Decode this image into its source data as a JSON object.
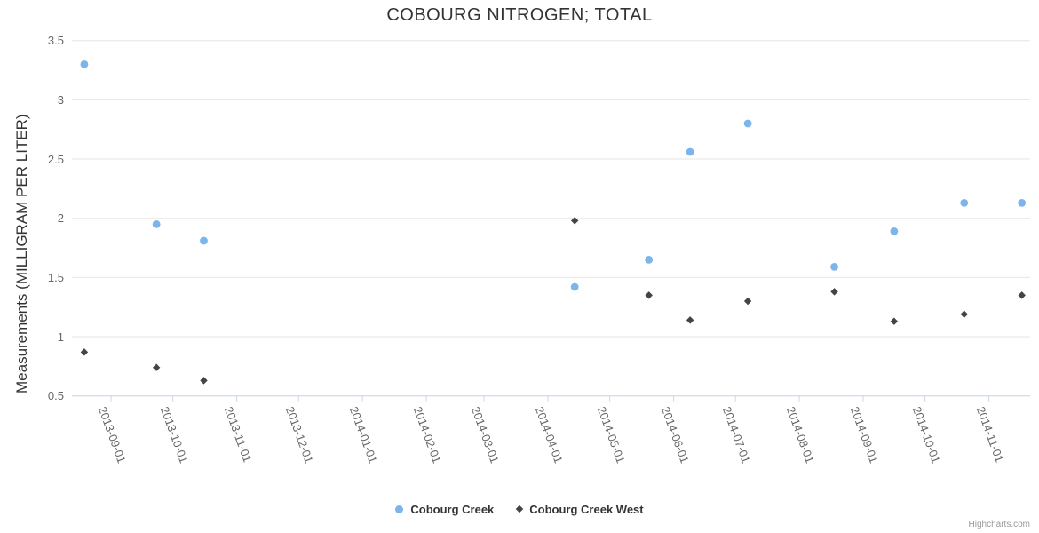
{
  "chart_data": {
    "type": "scatter",
    "title": "COBOURG NITROGEN; TOTAL",
    "xlabel": "",
    "ylabel": "Measurements (MILLIGRAM PER LITER)",
    "x_type": "datetime",
    "x_range": [
      "2013-08-13",
      "2014-11-21"
    ],
    "ylim": [
      0.5,
      3.5
    ],
    "y_ticks": [
      0.5,
      1,
      1.5,
      2,
      2.5,
      3,
      3.5
    ],
    "x_ticks": [
      "2013-09-01",
      "2013-10-01",
      "2013-11-01",
      "2013-12-01",
      "2014-01-01",
      "2014-02-01",
      "2014-03-01",
      "2014-04-01",
      "2014-05-01",
      "2014-06-01",
      "2014-07-01",
      "2014-08-01",
      "2014-09-01",
      "2014-10-01",
      "2014-11-01"
    ],
    "grid": "horizontal",
    "grid_color": "#e6e6e6",
    "axis_line_color": "#ccd6eb",
    "legend_position": "bottom-center",
    "series": [
      {
        "name": "Cobourg Creek",
        "marker": "circle",
        "color": "#7cb5ec",
        "points": [
          [
            "2013-08-19",
            3.3
          ],
          [
            "2013-09-23",
            1.95
          ],
          [
            "2013-10-16",
            1.81
          ],
          [
            "2014-04-14",
            1.42
          ],
          [
            "2014-05-20",
            1.65
          ],
          [
            "2014-06-09",
            2.56
          ],
          [
            "2014-07-07",
            2.8
          ],
          [
            "2014-08-18",
            1.59
          ],
          [
            "2014-09-16",
            1.89
          ],
          [
            "2014-10-20",
            2.13
          ],
          [
            "2014-11-17",
            2.13
          ]
        ]
      },
      {
        "name": "Cobourg Creek West",
        "marker": "diamond",
        "color": "#434348",
        "points": [
          [
            "2013-08-19",
            0.87
          ],
          [
            "2013-09-23",
            0.74
          ],
          [
            "2013-10-16",
            0.63
          ],
          [
            "2014-04-14",
            1.98
          ],
          [
            "2014-05-20",
            1.35
          ],
          [
            "2014-06-09",
            1.14
          ],
          [
            "2014-07-07",
            1.3
          ],
          [
            "2014-08-18",
            1.38
          ],
          [
            "2014-09-16",
            1.13
          ],
          [
            "2014-10-20",
            1.19
          ],
          [
            "2014-11-17",
            1.35
          ]
        ]
      }
    ]
  },
  "credits": {
    "label": "Highcharts.com"
  }
}
